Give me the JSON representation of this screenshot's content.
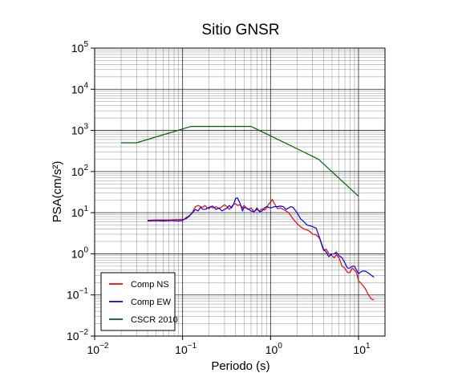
{
  "chart_data": {
    "type": "line",
    "title": "Sitio GNSR",
    "xlabel": "Periodo (s)",
    "ylabel": "PSA(cm/s²)",
    "x_scale": "log",
    "y_scale": "log",
    "xlim": [
      0.01,
      20
    ],
    "ylim": [
      0.01,
      100000
    ],
    "x_ticks": [
      {
        "value": 0.01,
        "base": "10",
        "exp": "−2"
      },
      {
        "value": 0.1,
        "base": "10",
        "exp": "−1"
      },
      {
        "value": 1,
        "base": "10",
        "exp": "0"
      },
      {
        "value": 10,
        "base": "10",
        "exp": "1"
      }
    ],
    "y_ticks": [
      {
        "value": 0.01,
        "base": "10",
        "exp": "−2"
      },
      {
        "value": 0.1,
        "base": "10",
        "exp": "−1"
      },
      {
        "value": 1,
        "base": "10",
        "exp": "0"
      },
      {
        "value": 10,
        "base": "10",
        "exp": "1"
      },
      {
        "value": 100,
        "base": "10",
        "exp": "2"
      },
      {
        "value": 1000,
        "base": "10",
        "exp": "3"
      },
      {
        "value": 10000,
        "base": "10",
        "exp": "4"
      },
      {
        "value": 100000,
        "base": "10",
        "exp": "5"
      }
    ],
    "grid": true,
    "legend_position": "bottom-left",
    "series": [
      {
        "name": "Comp NS",
        "color": "#ff0000",
        "points": [
          [
            0.04,
            6.5
          ],
          [
            0.05,
            6.6
          ],
          [
            0.06,
            6.6
          ],
          [
            0.07,
            6.6
          ],
          [
            0.08,
            6.7
          ],
          [
            0.09,
            6.8
          ],
          [
            0.1,
            6.8
          ],
          [
            0.11,
            7.1
          ],
          [
            0.12,
            8.3
          ],
          [
            0.13,
            10.5
          ],
          [
            0.14,
            14.0
          ],
          [
            0.15,
            15.0
          ],
          [
            0.16,
            14.0
          ],
          [
            0.17,
            13.5
          ],
          [
            0.18,
            15.0
          ],
          [
            0.19,
            13.0
          ],
          [
            0.2,
            12.5
          ],
          [
            0.21,
            14.0
          ],
          [
            0.22,
            13.0
          ],
          [
            0.24,
            14.0
          ],
          [
            0.26,
            12.5
          ],
          [
            0.28,
            14.0
          ],
          [
            0.3,
            15.5
          ],
          [
            0.32,
            14.0
          ],
          [
            0.34,
            12.0
          ],
          [
            0.36,
            14.0
          ],
          [
            0.38,
            16.0
          ],
          [
            0.4,
            16.5
          ],
          [
            0.42,
            15.0
          ],
          [
            0.45,
            15.5
          ],
          [
            0.48,
            13.0
          ],
          [
            0.5,
            15.0
          ],
          [
            0.55,
            12.0
          ],
          [
            0.6,
            13.0
          ],
          [
            0.65,
            10.5
          ],
          [
            0.7,
            12.0
          ],
          [
            0.75,
            11.0
          ],
          [
            0.8,
            12.5
          ],
          [
            0.85,
            11.5
          ],
          [
            0.9,
            13.0
          ],
          [
            0.95,
            16.0
          ],
          [
            1.0,
            18.0
          ],
          [
            1.05,
            21.0
          ],
          [
            1.1,
            17.0
          ],
          [
            1.2,
            12.5
          ],
          [
            1.3,
            13.0
          ],
          [
            1.4,
            12.0
          ],
          [
            1.5,
            11.0
          ],
          [
            1.6,
            10.0
          ],
          [
            1.7,
            8.5
          ],
          [
            1.8,
            7.0
          ],
          [
            2.0,
            5.5
          ],
          [
            2.2,
            4.5
          ],
          [
            2.4,
            4.0
          ],
          [
            2.6,
            3.8
          ],
          [
            2.8,
            3.5
          ],
          [
            3.0,
            3.0
          ],
          [
            3.3,
            2.9
          ],
          [
            3.6,
            2.4
          ],
          [
            4.0,
            1.2
          ],
          [
            4.3,
            1.3
          ],
          [
            4.6,
            1.0
          ],
          [
            5.0,
            0.9
          ],
          [
            5.3,
            0.8
          ],
          [
            5.6,
            0.95
          ],
          [
            6.0,
            0.8
          ],
          [
            6.5,
            0.5
          ],
          [
            7.0,
            0.45
          ],
          [
            7.5,
            0.35
          ],
          [
            8.0,
            0.35
          ],
          [
            8.5,
            0.45
          ],
          [
            9.0,
            0.4
          ],
          [
            9.5,
            0.35
          ],
          [
            10.0,
            0.22
          ],
          [
            11.0,
            0.18
          ],
          [
            12.0,
            0.14
          ],
          [
            13.0,
            0.1
          ],
          [
            14.0,
            0.08
          ],
          [
            15.0,
            0.075
          ]
        ]
      },
      {
        "name": "Comp EW",
        "color": "#0000ff",
        "points": [
          [
            0.04,
            6.3
          ],
          [
            0.05,
            6.4
          ],
          [
            0.06,
            6.3
          ],
          [
            0.07,
            6.4
          ],
          [
            0.08,
            6.4
          ],
          [
            0.09,
            6.3
          ],
          [
            0.1,
            6.5
          ],
          [
            0.11,
            7.5
          ],
          [
            0.12,
            8.5
          ],
          [
            0.13,
            10.0
          ],
          [
            0.14,
            12.0
          ],
          [
            0.15,
            11.0
          ],
          [
            0.16,
            13.5
          ],
          [
            0.17,
            12.0
          ],
          [
            0.18,
            12.0
          ],
          [
            0.2,
            13.5
          ],
          [
            0.22,
            14.5
          ],
          [
            0.24,
            12.0
          ],
          [
            0.26,
            13.0
          ],
          [
            0.28,
            11.0
          ],
          [
            0.3,
            12.0
          ],
          [
            0.32,
            13.0
          ],
          [
            0.34,
            15.0
          ],
          [
            0.36,
            13.0
          ],
          [
            0.38,
            16.0
          ],
          [
            0.4,
            22.0
          ],
          [
            0.42,
            23.0
          ],
          [
            0.45,
            17.0
          ],
          [
            0.48,
            11.0
          ],
          [
            0.5,
            13.5
          ],
          [
            0.55,
            12.5
          ],
          [
            0.6,
            11.0
          ],
          [
            0.65,
            10.5
          ],
          [
            0.7,
            13.0
          ],
          [
            0.75,
            10.5
          ],
          [
            0.8,
            11.0
          ],
          [
            0.85,
            13.0
          ],
          [
            0.9,
            14.0
          ],
          [
            1.0,
            13.0
          ],
          [
            1.1,
            14.0
          ],
          [
            1.2,
            14.0
          ],
          [
            1.3,
            14.5
          ],
          [
            1.4,
            14.0
          ],
          [
            1.5,
            12.0
          ],
          [
            1.6,
            13.0
          ],
          [
            1.7,
            14.0
          ],
          [
            1.8,
            13.5
          ],
          [
            2.0,
            10.0
          ],
          [
            2.2,
            7.0
          ],
          [
            2.4,
            6.0
          ],
          [
            2.6,
            5.0
          ],
          [
            2.8,
            4.8
          ],
          [
            3.0,
            4.6
          ],
          [
            3.3,
            4.2
          ],
          [
            3.6,
            2.5
          ],
          [
            4.0,
            1.3
          ],
          [
            4.3,
            1.1
          ],
          [
            4.6,
            0.85
          ],
          [
            5.0,
            1.0
          ],
          [
            5.3,
            1.0
          ],
          [
            5.6,
            1.1
          ],
          [
            6.0,
            0.9
          ],
          [
            6.5,
            0.8
          ],
          [
            7.0,
            0.6
          ],
          [
            7.5,
            0.45
          ],
          [
            8.0,
            0.45
          ],
          [
            8.5,
            0.5
          ],
          [
            9.0,
            0.5
          ],
          [
            9.5,
            0.4
          ],
          [
            10.0,
            0.33
          ],
          [
            11.0,
            0.38
          ],
          [
            12.0,
            0.38
          ],
          [
            13.0,
            0.34
          ],
          [
            14.0,
            0.3
          ],
          [
            15.0,
            0.27
          ]
        ]
      },
      {
        "name": "CSCR 2010",
        "color": "#006400",
        "points": [
          [
            0.02,
            500
          ],
          [
            0.03,
            500
          ],
          [
            0.125,
            1250
          ],
          [
            0.6,
            1250
          ],
          [
            3.5,
            200
          ],
          [
            10,
            25
          ]
        ]
      }
    ]
  }
}
